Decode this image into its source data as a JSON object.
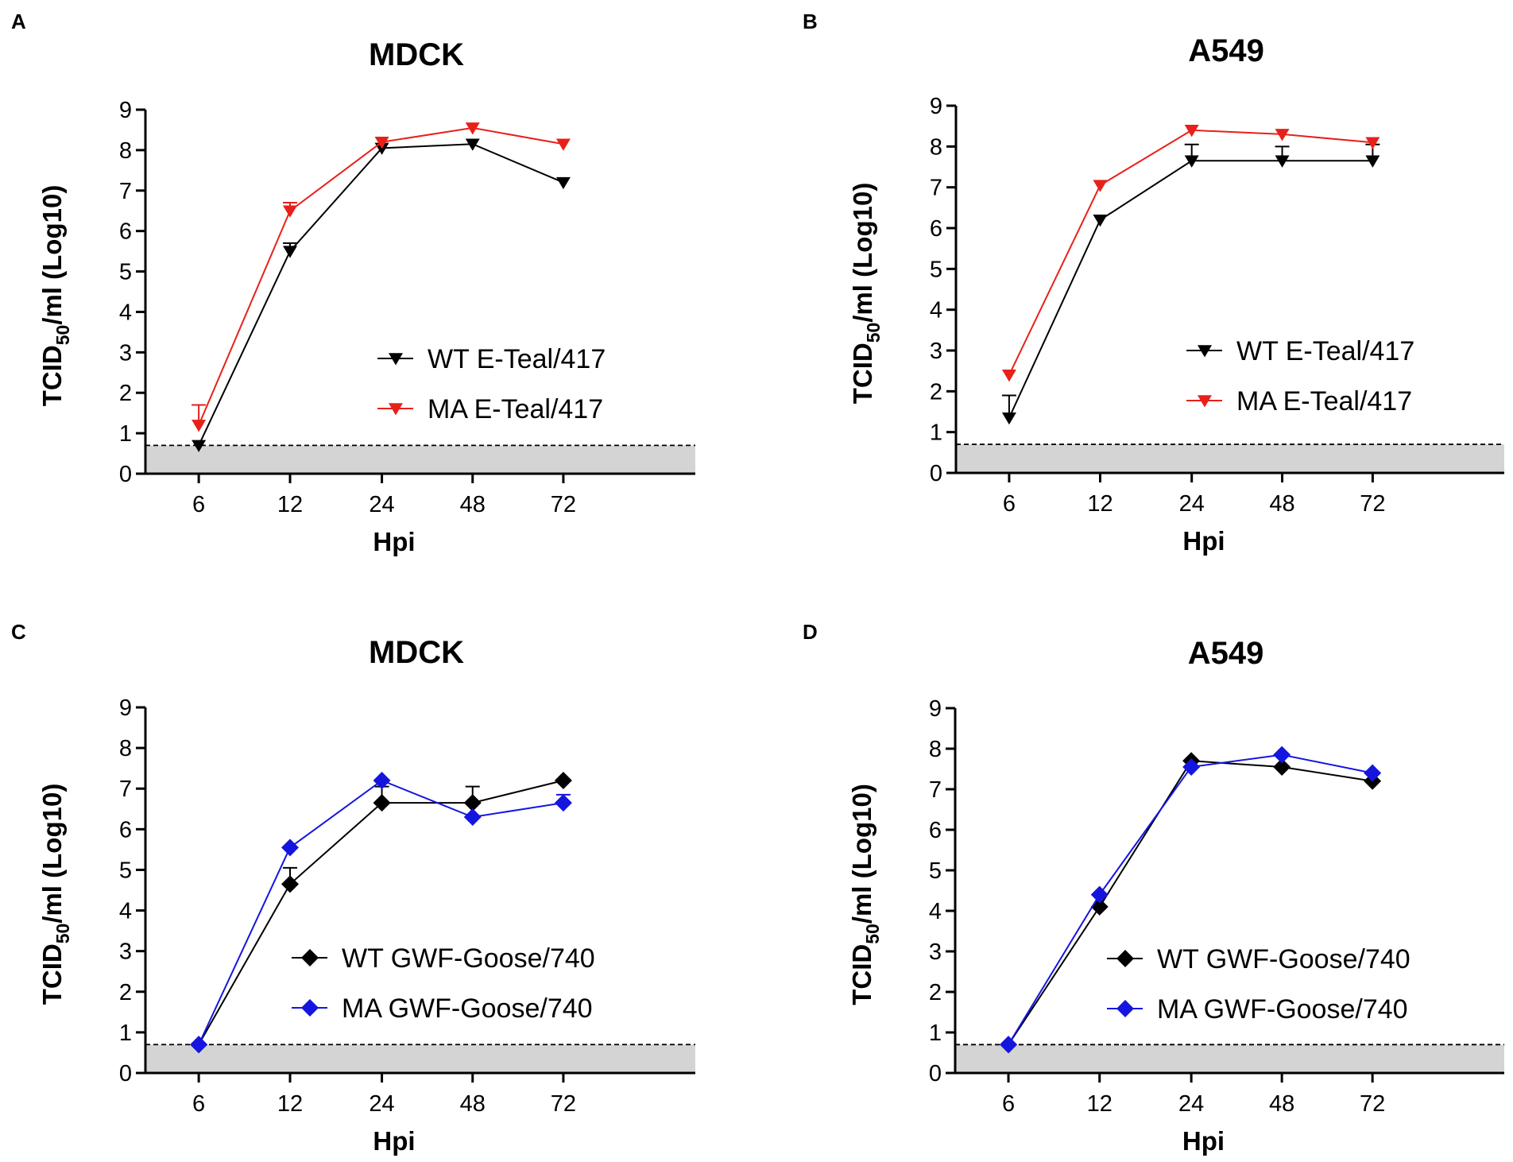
{
  "figure_name": "TCID50 growth curves",
  "chart_data": [
    {
      "id": "A",
      "panel_label": "A",
      "type": "line",
      "title": "MDCK",
      "xlabel": "Hpi",
      "ylabel_parts": [
        "TCID",
        "50",
        "/ml (Log10)"
      ],
      "categories": [
        "6",
        "12",
        "24",
        "48",
        "72"
      ],
      "ylim": [
        0,
        9
      ],
      "yticks": [
        0,
        1,
        2,
        3,
        4,
        5,
        6,
        7,
        8,
        9
      ],
      "detection_limit": 0.7,
      "series": [
        {
          "name": "WT E-Teal/417",
          "color": "#000000",
          "marker": "triangle-down",
          "values": [
            0.7,
            5.5,
            8.05,
            8.15,
            7.2
          ],
          "error": [
            0,
            0.2,
            0,
            0,
            0
          ]
        },
        {
          "name": "MA E-Teal/417",
          "color": "#e8201a",
          "marker": "triangle-down",
          "values": [
            1.2,
            6.5,
            8.2,
            8.55,
            8.15
          ],
          "error": [
            0.5,
            0.2,
            0,
            0,
            0
          ]
        }
      ]
    },
    {
      "id": "B",
      "panel_label": "B",
      "type": "line",
      "title": "A549",
      "xlabel": "Hpi",
      "ylabel_parts": [
        "TCID",
        "50",
        "/ml (Log10)"
      ],
      "categories": [
        "6",
        "12",
        "24",
        "48",
        "72"
      ],
      "ylim": [
        0,
        9
      ],
      "yticks": [
        0,
        1,
        2,
        3,
        4,
        5,
        6,
        7,
        8,
        9
      ],
      "detection_limit": 0.7,
      "series": [
        {
          "name": "WT E-Teal/417",
          "color": "#000000",
          "marker": "triangle-down",
          "values": [
            1.35,
            6.2,
            7.65,
            7.65,
            7.65
          ],
          "error": [
            0.55,
            0,
            0.4,
            0.35,
            0.4
          ]
        },
        {
          "name": "MA E-Teal/417",
          "color": "#e8201a",
          "marker": "triangle-down",
          "values": [
            2.4,
            7.05,
            8.4,
            8.3,
            8.1
          ],
          "error": [
            0,
            0,
            0,
            0,
            0
          ]
        }
      ]
    },
    {
      "id": "C",
      "panel_label": "C",
      "type": "line",
      "title": "MDCK",
      "xlabel": "Hpi",
      "ylabel_parts": [
        "TCID",
        "50",
        "/ml (Log10)"
      ],
      "categories": [
        "6",
        "12",
        "24",
        "48",
        "72"
      ],
      "ylim": [
        0,
        9
      ],
      "yticks": [
        0,
        1,
        2,
        3,
        4,
        5,
        6,
        7,
        8,
        9
      ],
      "detection_limit": 0.7,
      "series": [
        {
          "name": "WT GWF-Goose/740",
          "color": "#000000",
          "marker": "diamond",
          "values": [
            0.7,
            4.65,
            6.65,
            6.65,
            7.2
          ],
          "error": [
            0,
            0.4,
            0.4,
            0.4,
            0
          ]
        },
        {
          "name": "MA GWF-Goose/740",
          "color": "#1515e0",
          "marker": "diamond",
          "values": [
            0.7,
            5.55,
            7.2,
            6.3,
            6.65
          ],
          "error": [
            0,
            0,
            0,
            0,
            0.2
          ]
        }
      ]
    },
    {
      "id": "D",
      "panel_label": "D",
      "type": "line",
      "title": "A549",
      "xlabel": "Hpi",
      "ylabel_parts": [
        "TCID",
        "50",
        "/ml (Log10)"
      ],
      "categories": [
        "6",
        "12",
        "24",
        "48",
        "72"
      ],
      "ylim": [
        0,
        9
      ],
      "yticks": [
        0,
        1,
        2,
        3,
        4,
        5,
        6,
        7,
        8,
        9
      ],
      "detection_limit": 0.7,
      "series": [
        {
          "name": "WT GWF-Goose/740",
          "color": "#000000",
          "marker": "diamond",
          "values": [
            0.7,
            4.1,
            7.7,
            7.55,
            7.2
          ],
          "error": [
            0,
            0,
            0,
            0,
            0
          ]
        },
        {
          "name": "MA GWF-Goose/740",
          "color": "#1515e0",
          "marker": "diamond",
          "values": [
            0.7,
            4.4,
            7.55,
            7.85,
            7.4
          ],
          "error": [
            0,
            0,
            0,
            0,
            0
          ]
        }
      ]
    }
  ]
}
